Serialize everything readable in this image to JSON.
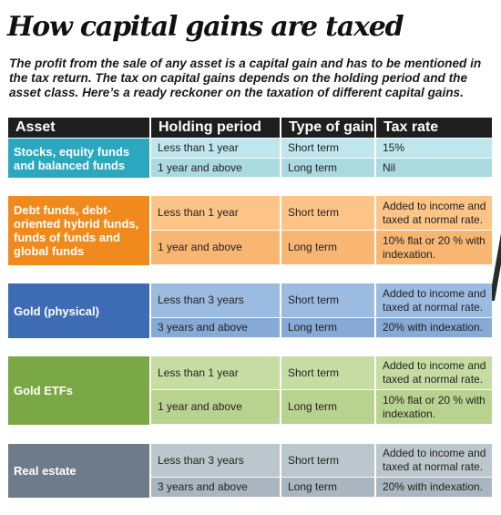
{
  "title": "How capital gains are taxed",
  "intro": "The profit from the sale of any asset is a capital gain and has to be mentioned in the tax return. The tax on capital gains depends on the holding period and the asset class. Here’s a ready reckoner on the taxation of different capital gains.",
  "headers": {
    "asset": "Asset",
    "holding": "Holding period",
    "type": "Type of gain",
    "rate": "Tax rate"
  },
  "groups": [
    {
      "asset": "Stocks, equity funds and balanced funds",
      "color": "#2ba8c0",
      "light": "#bfe6ec",
      "light2": "#aad9e0",
      "rows": [
        {
          "holding": "Less than 1 year",
          "type": "Short term",
          "rate": "15%"
        },
        {
          "holding": "1 year and above",
          "type": "Long term",
          "rate": "Nil"
        }
      ]
    },
    {
      "asset": "Debt funds, debt-oriented hybrid funds, funds of funds and global funds",
      "color": "#f08a1c",
      "light": "#fcc487",
      "light2": "#f9b672",
      "rows": [
        {
          "holding": "Less than 1 year",
          "type": "Short term",
          "rate": "Added to income and taxed at normal rate."
        },
        {
          "holding": "1 year and above",
          "type": "Long term",
          "rate": "10% flat or 20 % with indexation."
        }
      ]
    },
    {
      "asset": "Gold (physical)",
      "color": "#3d6cb4",
      "light": "#9cbbe0",
      "light2": "#86a9d6",
      "rows": [
        {
          "holding": "Less than 3 years",
          "type": "Short term",
          "rate": "Added to income and taxed at normal rate."
        },
        {
          "holding": "3 years and above",
          "type": "Long term",
          "rate": "20% with indexation."
        }
      ]
    },
    {
      "asset": "Gold ETFs",
      "color": "#7aa845",
      "light": "#c6dca2",
      "light2": "#b8d38f",
      "rows": [
        {
          "holding": "Less than 1 year",
          "type": "Short term",
          "rate": "Added to income and taxed at normal rate."
        },
        {
          "holding": "1 year and above",
          "type": "Long term",
          "rate": "10% flat or 20 % with indexation."
        }
      ]
    },
    {
      "asset": "Real estate",
      "color": "#6d7c88",
      "light": "#bcc6cd",
      "light2": "#aab6bf",
      "rows": [
        {
          "holding": "Less than 3 years",
          "type": "Short term",
          "rate": "Added to income and taxed at normal rate."
        },
        {
          "holding": "3 years and above",
          "type": "Long term",
          "rate": "20% with indexation."
        }
      ]
    }
  ]
}
